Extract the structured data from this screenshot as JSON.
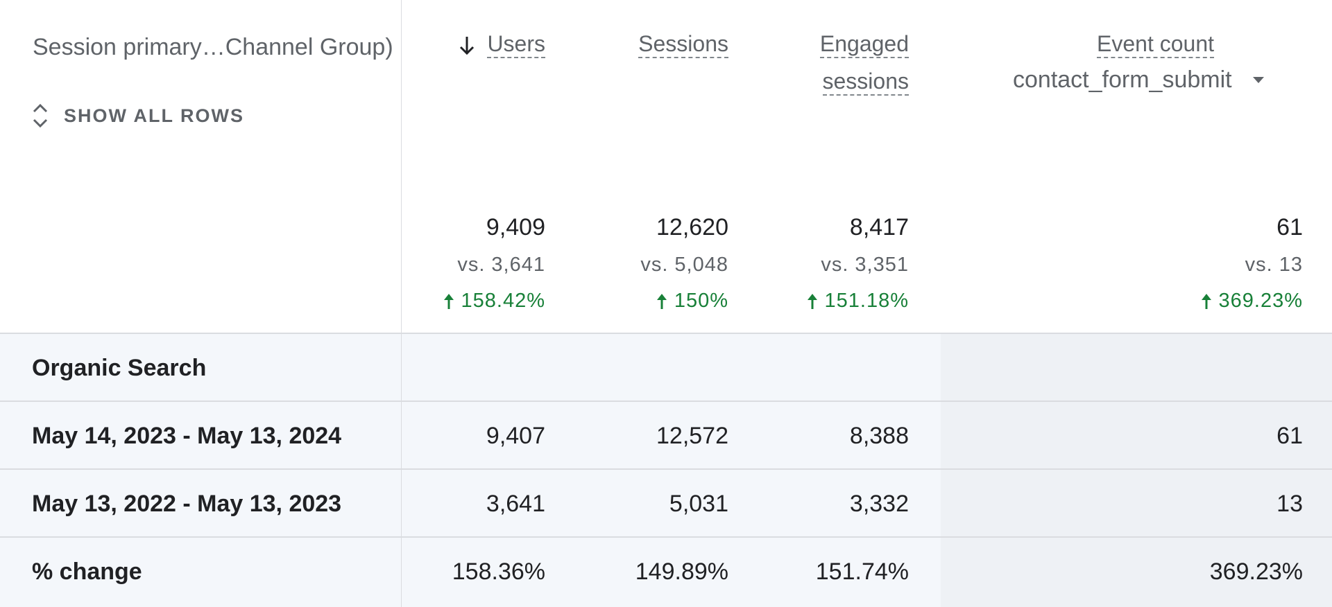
{
  "table": {
    "dimension_header": "Session primary…Channel Group)",
    "show_all_rows_label": "SHOW ALL ROWS",
    "columns": [
      {
        "label": "Users",
        "sorted": "desc"
      },
      {
        "label": "Sessions"
      },
      {
        "label_line1": "Engaged",
        "label_line2": "sessions"
      },
      {
        "label": "Event count",
        "selected_event": "contact_form_submit"
      }
    ],
    "totals": [
      {
        "value": "9,409",
        "vs": "vs. 3,641",
        "change": "158.42%"
      },
      {
        "value": "12,620",
        "vs": "vs. 5,048",
        "change": "150%"
      },
      {
        "value": "8,417",
        "vs": "vs. 3,351",
        "change": "151.18%"
      },
      {
        "value": "61",
        "vs": "vs. 13",
        "change": "369.23%"
      }
    ],
    "rows": [
      {
        "label": "Organic Search",
        "cells": [
          "",
          "",
          "",
          ""
        ]
      },
      {
        "label": "May 14, 2023 - May 13, 2024",
        "cells": [
          "9,407",
          "12,572",
          "8,388",
          "61"
        ]
      },
      {
        "label": "May 13, 2022 - May 13, 2023",
        "cells": [
          "3,641",
          "5,031",
          "3,332",
          "13"
        ]
      },
      {
        "label": "% change",
        "cells": [
          "158.36%",
          "149.89%",
          "151.74%",
          "369.23%"
        ]
      }
    ]
  },
  "colors": {
    "positive_change": "#188038",
    "row_background": "#f4f7fb",
    "divider": "#dadce0"
  },
  "icons": [
    "sort-down-arrow-icon",
    "expand-collapse-chevron-icon",
    "dropdown-caret-icon",
    "up-arrow-icon"
  ]
}
